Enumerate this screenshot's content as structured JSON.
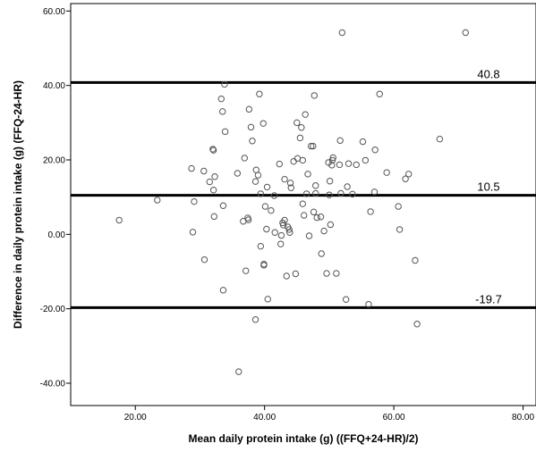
{
  "chart_data": {
    "type": "scatter",
    "title": "",
    "xlabel": "Mean daily protein intake (g) ((FFQ+24-HR)/2)",
    "ylabel": "Difference in daily protein intake (g) (FFQ-24-HR)",
    "xlim": [
      10,
      82
    ],
    "ylim": [
      -46,
      62
    ],
    "x_ticks": [
      20,
      40,
      60,
      80
    ],
    "x_tick_labels": [
      "20.00",
      "40.00",
      "60.00",
      "80.00"
    ],
    "y_ticks": [
      -40,
      -20,
      0,
      20,
      40,
      60
    ],
    "y_tick_labels": [
      "-40.00",
      "-20.00",
      "0.00",
      "20.00",
      "40.00",
      "60.00"
    ],
    "grid": false,
    "reference_lines": [
      {
        "value": 40.8,
        "label": "40.8"
      },
      {
        "value": 10.5,
        "label": "10.5"
      },
      {
        "value": -19.7,
        "label": "-19.7"
      }
    ],
    "colors": {
      "points": "#555555",
      "lines": "#000000",
      "background": "#ffffff"
    },
    "x": [
      17.5,
      23.4,
      28.7,
      28.9,
      29.1,
      30.6,
      30.7,
      31.5,
      32.0,
      32.1,
      32.1,
      32.2,
      32.3,
      33.3,
      33.5,
      33.6,
      33.6,
      33.8,
      33.9,
      35.8,
      36.0,
      36.7,
      36.9,
      37.1,
      37.4,
      37.5,
      37.6,
      37.9,
      38.1,
      38.6,
      38.6,
      38.7,
      39.0,
      39.2,
      39.4,
      39.4,
      39.8,
      39.9,
      39.9,
      40.1,
      40.3,
      40.4,
      40.5,
      41.0,
      41.5,
      41.6,
      42.3,
      42.5,
      42.6,
      42.8,
      42.9,
      43.1,
      43.1,
      43.4,
      43.6,
      43.8,
      43.9,
      44.0,
      44.1,
      44.5,
      44.8,
      45.0,
      45.1,
      45.5,
      45.7,
      45.9,
      45.9,
      46.1,
      46.3,
      46.5,
      46.7,
      46.9,
      47.2,
      47.5,
      47.6,
      47.7,
      47.9,
      47.9,
      48.1,
      48.7,
      48.8,
      49.2,
      49.6,
      49.9,
      50.0,
      50.1,
      50.2,
      50.4,
      50.5,
      50.6,
      51.1,
      51.6,
      51.7,
      51.8,
      52.0,
      52.6,
      52.8,
      53.0,
      53.6,
      54.2,
      55.2,
      55.6,
      56.1,
      56.4,
      57.0,
      57.1,
      57.8,
      58.9,
      60.7,
      60.9,
      61.8,
      62.3,
      63.3,
      63.6,
      67.1,
      71.1
    ],
    "y": [
      3.8,
      9.2,
      17.7,
      0.6,
      8.8,
      17.0,
      -6.8,
      14.1,
      22.9,
      22.6,
      11.9,
      4.8,
      15.5,
      36.4,
      33.0,
      7.7,
      -15.0,
      40.3,
      27.6,
      16.4,
      -36.9,
      3.5,
      20.5,
      -9.8,
      4.4,
      3.9,
      33.6,
      28.8,
      25.1,
      14.2,
      -22.9,
      17.3,
      15.9,
      37.7,
      -3.2,
      10.9,
      29.8,
      -8.0,
      -8.3,
      7.5,
      1.4,
      12.7,
      -17.4,
      6.4,
      10.4,
      0.5,
      18.9,
      -2.6,
      -0.3,
      3.1,
      2.5,
      3.8,
      14.8,
      -11.2,
      2.0,
      1.3,
      0.5,
      13.8,
      12.5,
      19.6,
      -10.6,
      30.0,
      20.4,
      25.9,
      28.7,
      19.9,
      8.2,
      5.1,
      32.2,
      10.9,
      16.2,
      -0.4,
      23.7,
      23.7,
      6.0,
      37.3,
      11.0,
      13.1,
      4.5,
      4.7,
      -5.2,
      0.9,
      -10.5,
      19.3,
      10.6,
      14.3,
      2.6,
      18.6,
      19.9,
      20.6,
      -10.5,
      18.7,
      25.2,
      11.0,
      54.2,
      -17.5,
      12.8,
      19.0,
      10.8,
      18.7,
      24.9,
      19.9,
      -18.8,
      6.1,
      11.4,
      22.7,
      37.7,
      16.6,
      7.5,
      1.3,
      14.9,
      16.2,
      -7.0,
      -24.1,
      25.6,
      54.2
    ]
  }
}
